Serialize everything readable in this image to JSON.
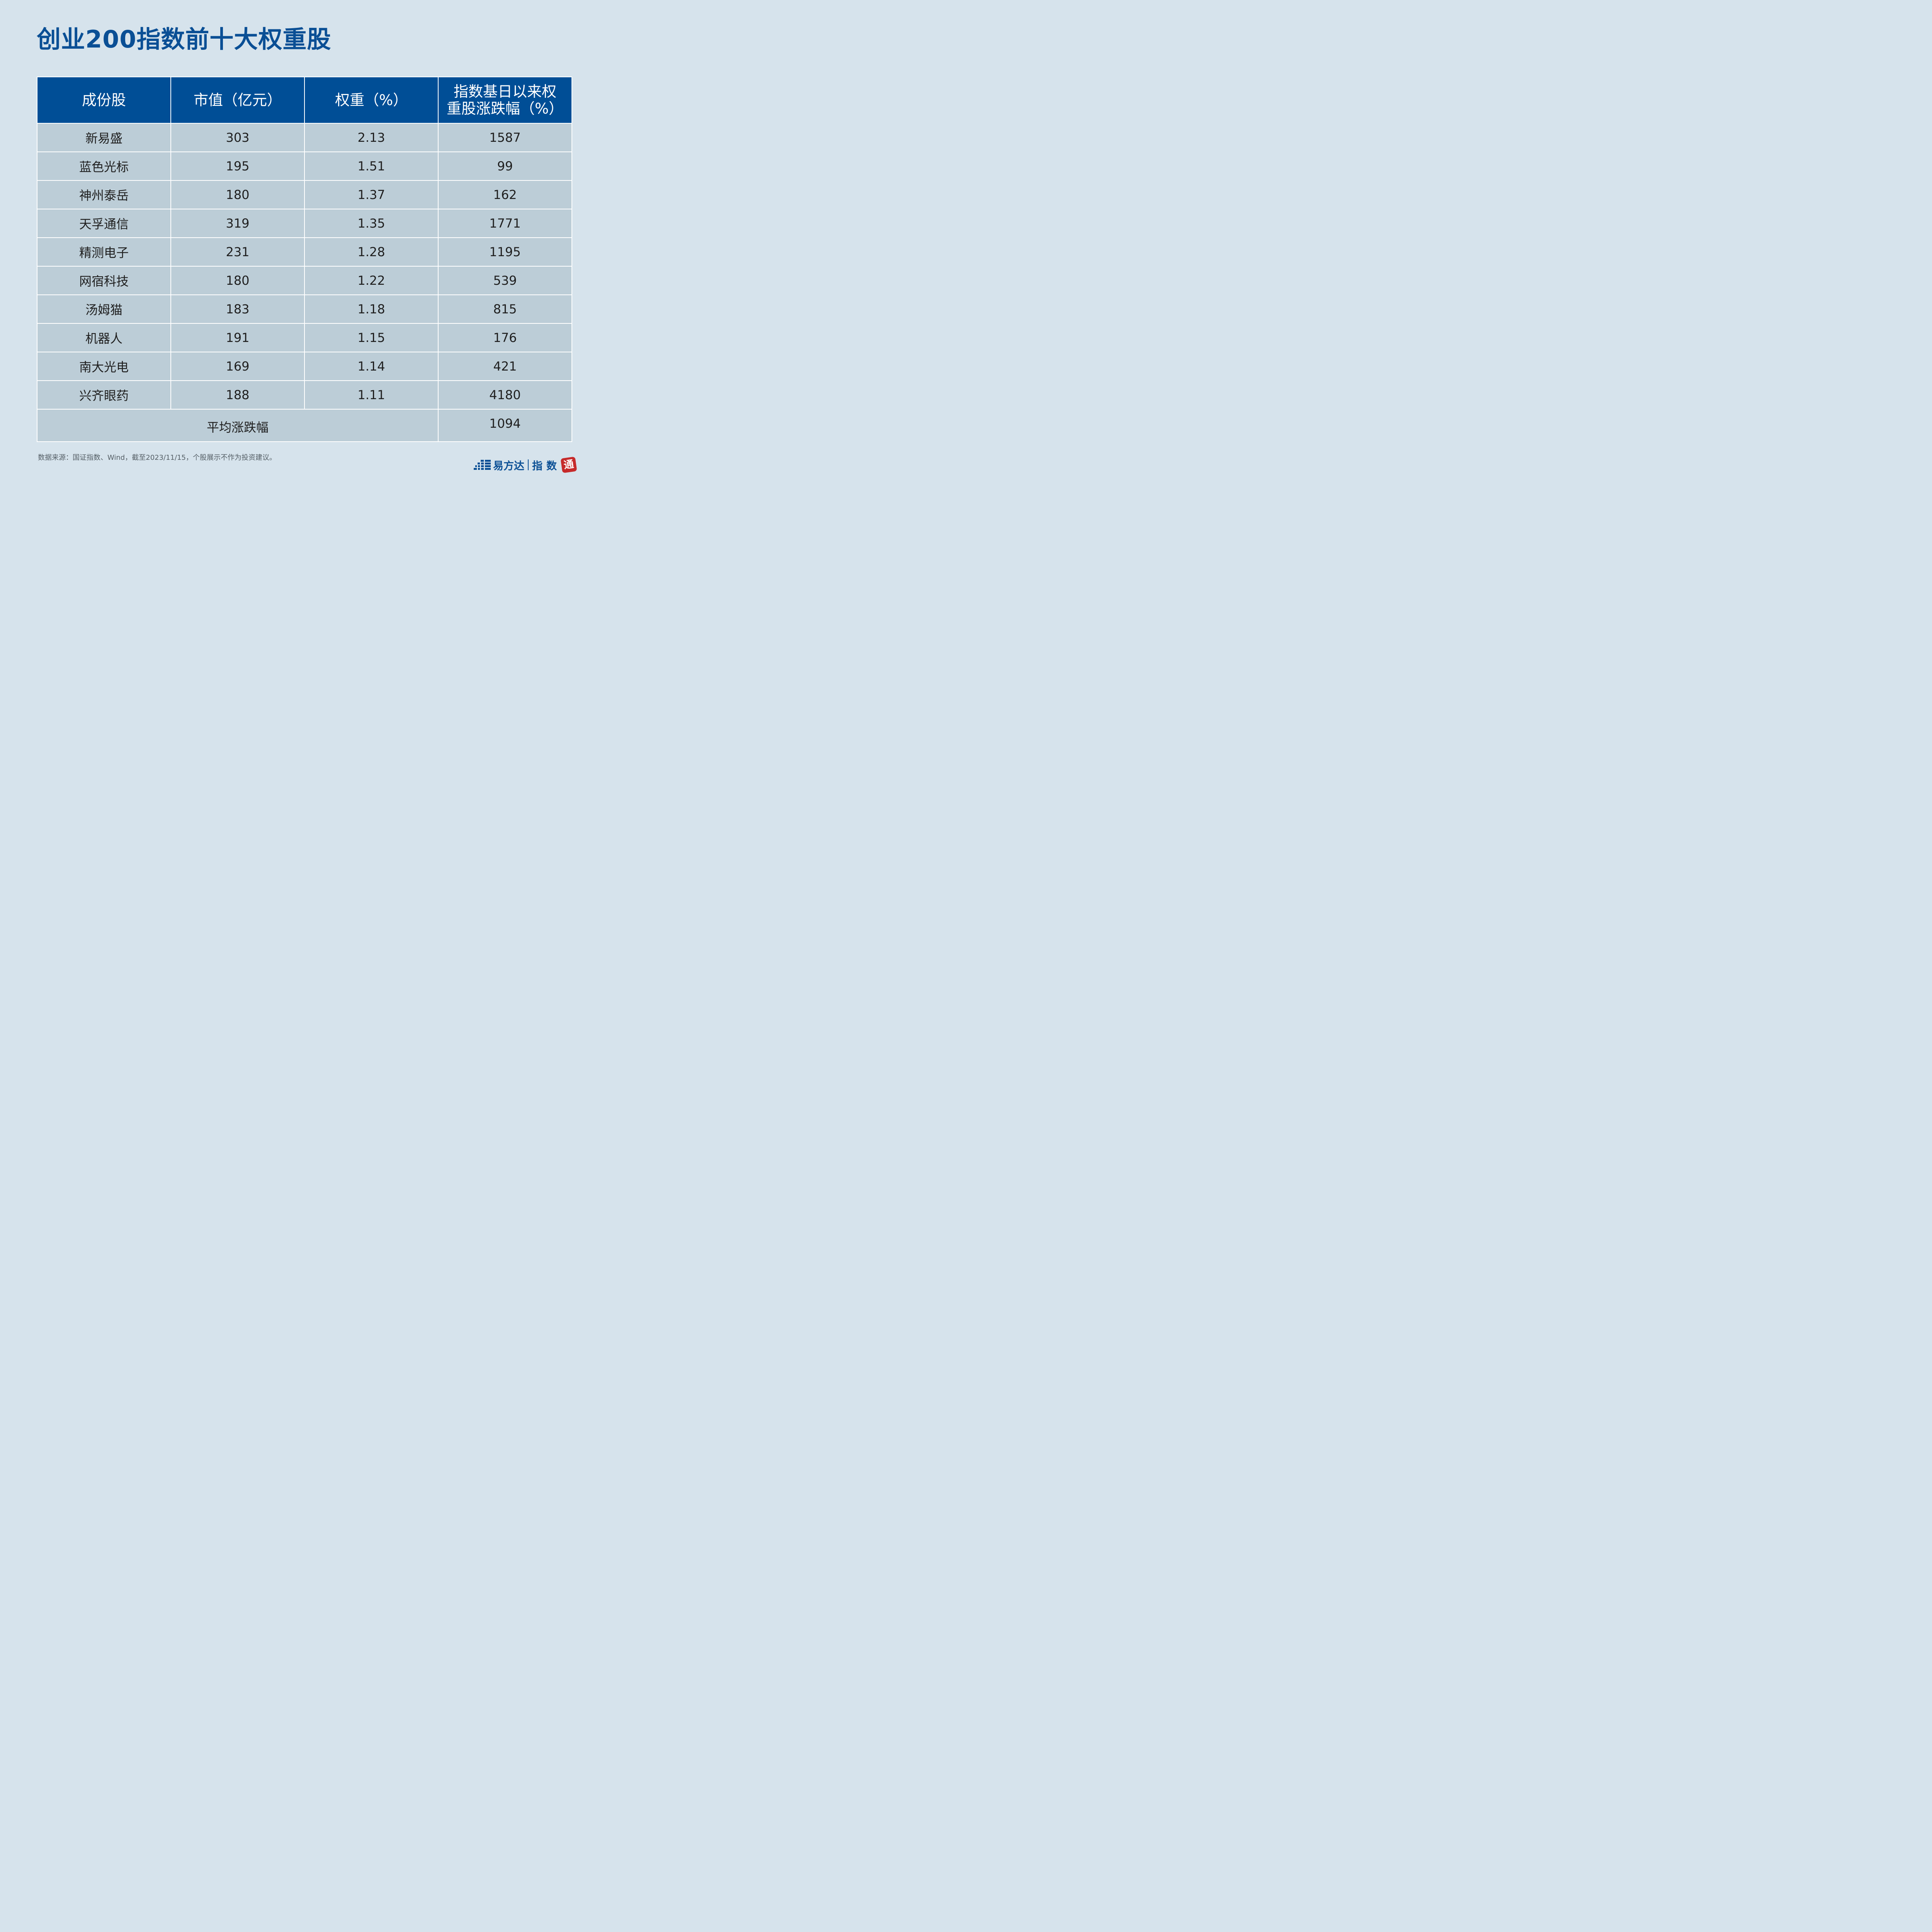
{
  "title": "创业200指数前十大权重股",
  "table": {
    "headers": [
      [
        "成份股"
      ],
      [
        "市值（亿元）"
      ],
      [
        "权重（%）"
      ],
      [
        "指数基日以来权",
        "重股涨跌幅（%）"
      ]
    ],
    "rows": [
      {
        "name": "新易盛",
        "market_cap": "303",
        "weight": "2.13",
        "change": "1587"
      },
      {
        "name": "蓝色光标",
        "market_cap": "195",
        "weight": "1.51",
        "change": "99"
      },
      {
        "name": "神州泰岳",
        "market_cap": "180",
        "weight": "1.37",
        "change": "162"
      },
      {
        "name": "天孚通信",
        "market_cap": "319",
        "weight": "1.35",
        "change": "1771"
      },
      {
        "name": "精测电子",
        "market_cap": "231",
        "weight": "1.28",
        "change": "1195"
      },
      {
        "name": "网宿科技",
        "market_cap": "180",
        "weight": "1.22",
        "change": "539"
      },
      {
        "name": "汤姆猫",
        "market_cap": "183",
        "weight": "1.18",
        "change": "815"
      },
      {
        "name": "机器人",
        "market_cap": "191",
        "weight": "1.15",
        "change": "176"
      },
      {
        "name": "南大光电",
        "market_cap": "169",
        "weight": "1.14",
        "change": "421"
      },
      {
        "name": "兴齐眼药",
        "market_cap": "188",
        "weight": "1.11",
        "change": "4180"
      }
    ],
    "average": {
      "label": "平均涨跌幅",
      "value": "1094"
    }
  },
  "source": "数据来源：国证指数、Wind，截至2023/11/15，个股展示不作为投资建议。",
  "brand": {
    "name": "易方达",
    "sub": "指数",
    "seal": "通"
  },
  "colors": {
    "background": "#d6e3ec",
    "title": "#0a4f95",
    "header_bg": "#004e96",
    "cell_bg": "#bccdd7",
    "seal": "#c62a2a"
  }
}
